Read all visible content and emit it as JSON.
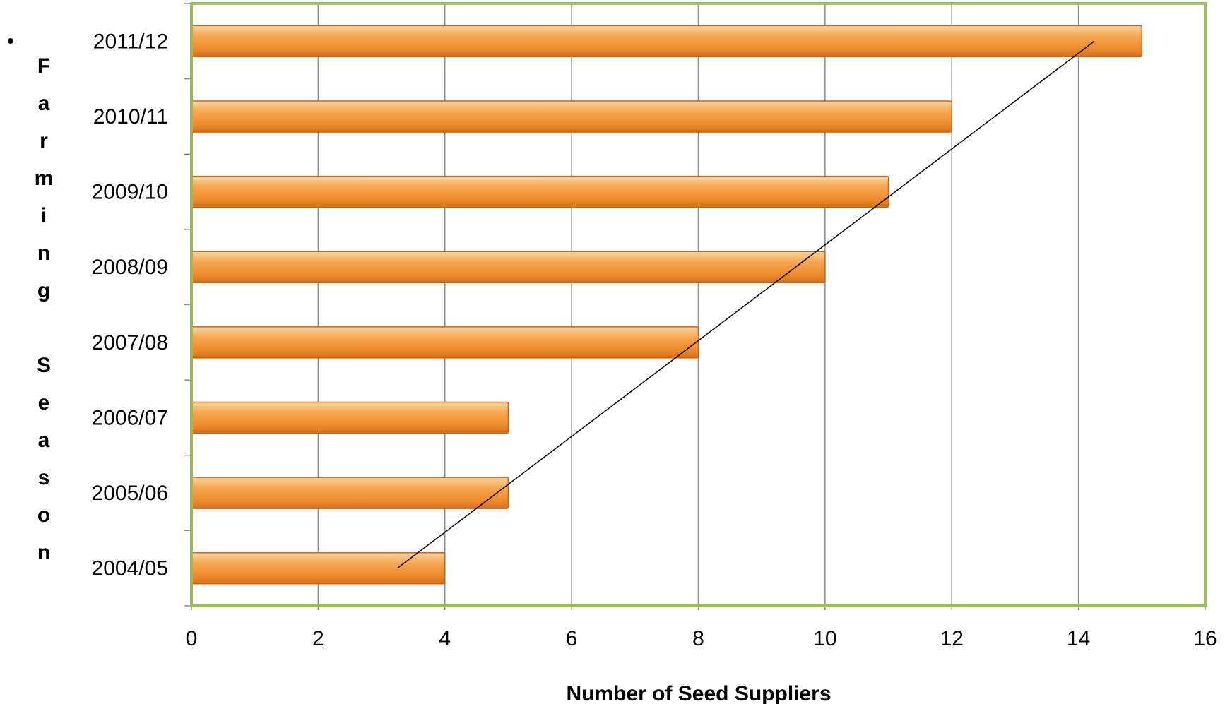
{
  "chart_data": {
    "type": "bar",
    "orientation": "horizontal",
    "title": "",
    "xlabel": "Number of  Seed Suppliers",
    "ylabel": "Farming Season",
    "ylabel_bullet": "•",
    "categories": [
      "2004/05",
      "2005/06",
      "2006/07",
      "2007/08",
      "2008/09",
      "2009/10",
      "2010/11",
      "2011/12"
    ],
    "values": [
      4,
      5,
      5,
      8,
      10,
      11,
      12,
      15
    ],
    "xlim": [
      0,
      16
    ],
    "x_ticks": [
      0,
      2,
      4,
      6,
      8,
      10,
      12,
      14,
      16
    ],
    "grid": "vertical",
    "legend": "none",
    "trendline": {
      "type": "linear",
      "start": {
        "x": 3.25,
        "category_index": 0
      },
      "end": {
        "x": 14.25,
        "category_index": 7
      }
    },
    "colors": {
      "bar_fill": "#f39a3c",
      "bar_highlight": "#fdd9a8",
      "bar_edge": "#c8661a",
      "plot_border": "#9bbb59",
      "gridline": "#8c8c8c",
      "trendline": "#000000"
    }
  }
}
